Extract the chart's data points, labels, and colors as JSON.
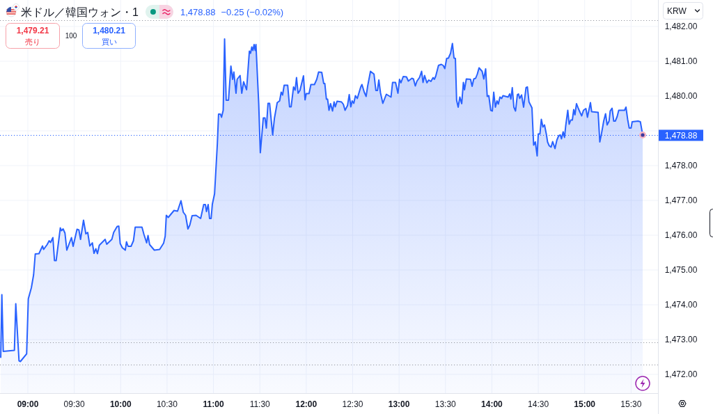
{
  "chart_data": {
    "type": "area",
    "title": "米ドル／韓国ウォン・1",
    "ylabel": "KRW",
    "annotations": [
      "1,478.88",
      "−0.25 (−0.02%)",
      "1,479.21",
      "売り",
      "100",
      "1,480.21",
      "買い"
    ],
    "color": "#2962ff",
    "x": [
      8.708,
      8.72,
      8.735,
      8.855,
      8.87,
      8.905,
      8.92,
      8.987,
      9.005,
      9.038,
      9.062,
      9.08,
      9.12,
      9.158,
      9.17,
      9.208,
      9.23,
      9.245,
      9.27,
      9.287,
      9.305,
      9.35,
      9.362,
      9.38,
      9.4,
      9.42,
      9.47,
      9.488,
      9.53,
      9.55,
      9.568,
      9.6,
      9.625,
      9.645,
      9.668,
      9.695,
      9.713,
      9.733,
      9.75,
      9.77,
      9.833,
      9.85,
      9.905,
      9.925,
      9.962,
      9.98,
      9.995,
      10.018,
      10.05,
      10.063,
      10.08,
      10.112,
      10.138,
      10.157,
      10.23,
      10.25,
      10.28,
      10.295,
      10.312,
      10.363,
      10.42,
      10.463,
      10.48,
      10.492,
      10.513,
      10.575,
      10.613,
      10.65,
      10.675,
      10.7,
      10.725,
      10.745,
      10.77,
      10.813,
      10.862,
      10.895,
      10.913,
      10.925,
      10.943,
      10.958,
      10.975,
      10.988,
      11.012,
      11.042,
      11.055,
      11.075,
      11.087,
      11.105,
      11.12,
      11.137,
      11.162,
      11.188,
      11.207,
      11.22,
      11.243,
      11.255,
      11.287,
      11.305,
      11.325,
      11.357,
      11.387,
      11.4,
      11.413,
      11.425,
      11.438,
      11.45,
      11.458,
      11.488,
      11.505,
      11.537,
      11.555,
      11.57,
      11.588,
      11.605,
      11.638,
      11.657,
      11.687,
      11.713,
      11.73,
      11.745,
      11.762,
      11.8,
      11.82,
      11.837,
      11.863,
      11.88,
      11.895,
      11.912,
      11.932,
      11.97,
      11.987,
      12.0,
      12.03,
      12.05,
      12.088,
      12.113,
      12.133,
      12.167,
      12.188,
      12.2,
      12.217,
      12.23,
      12.245,
      12.262,
      12.283,
      12.3,
      12.313,
      12.332,
      12.38,
      12.4,
      12.418,
      12.445,
      12.463,
      12.48,
      12.495,
      12.512,
      12.53,
      12.55,
      12.587,
      12.6,
      12.625,
      12.645,
      12.662,
      12.692,
      12.73,
      12.75,
      12.767,
      12.782,
      12.8,
      12.825,
      12.863,
      12.913,
      12.93,
      12.962,
      12.988,
      13.005,
      13.02,
      13.045,
      13.08,
      13.1,
      13.138,
      13.155,
      13.175,
      13.193,
      13.22,
      13.243,
      13.258,
      13.275,
      13.3,
      13.32,
      13.343,
      13.367,
      13.38,
      13.395,
      13.425,
      13.455,
      13.475,
      13.493,
      13.513,
      13.532,
      13.555,
      13.575,
      13.592,
      13.607,
      13.62,
      13.637,
      13.655,
      13.675,
      13.693,
      13.705,
      13.725,
      13.77,
      13.787,
      13.805,
      13.825,
      13.843,
      13.862,
      13.895,
      13.913,
      13.933,
      13.95,
      13.967,
      13.988,
      14.005,
      14.02,
      14.038,
      14.055,
      14.07,
      14.087,
      14.105,
      14.12,
      14.175,
      14.192,
      14.205,
      14.22,
      14.237,
      14.255,
      14.275,
      14.287,
      14.3,
      14.32,
      14.342,
      14.368,
      14.383,
      14.4,
      14.432,
      14.45,
      14.468,
      14.488,
      14.5,
      14.518,
      14.533,
      14.55,
      14.567,
      14.588,
      14.6,
      14.618,
      14.638,
      14.655,
      14.68,
      14.7,
      14.72,
      14.738,
      14.75,
      14.768,
      14.783,
      14.795,
      14.818,
      14.833,
      14.85,
      14.867,
      14.882,
      14.895,
      14.912,
      14.932,
      14.95,
      14.968,
      14.987,
      15.013,
      15.03,
      15.062,
      15.075,
      15.145,
      15.163,
      15.182,
      15.205,
      15.225,
      15.242,
      15.263,
      15.275,
      15.295,
      15.313,
      15.33,
      15.35,
      15.367,
      15.43,
      15.445,
      15.463,
      15.48,
      15.5,
      15.512,
      15.575,
      15.6,
      15.625
    ],
    "values": [
      1472.49,
      1474.29,
      1472.66,
      1472.69,
      1474.03,
      1472.39,
      1472.37,
      1472.59,
      1474.17,
      1474.49,
      1474.86,
      1475.46,
      1475.47,
      1475.69,
      1475.59,
      1475.73,
      1475.84,
      1475.79,
      1475.93,
      1475.27,
      1475.27,
      1476.21,
      1476.13,
      1476.18,
      1476.06,
      1475.57,
      1475.93,
      1475.68,
      1476.17,
      1476.15,
      1475.88,
      1476.43,
      1476.04,
      1476.08,
      1475.69,
      1475.78,
      1475.48,
      1475.61,
      1475.47,
      1475.71,
      1475.88,
      1475.74,
      1475.88,
      1476.08,
      1476.25,
      1476.26,
      1475.76,
      1475.64,
      1475.57,
      1475.81,
      1475.68,
      1475.68,
      1475.84,
      1476.23,
      1476.23,
      1476.03,
      1475.78,
      1475.99,
      1475.73,
      1475.57,
      1475.59,
      1475.77,
      1475.97,
      1476.57,
      1476.51,
      1476.71,
      1476.69,
      1476.99,
      1476.66,
      1476.57,
      1476.18,
      1476.29,
      1476.56,
      1476.57,
      1476.48,
      1476.88,
      1476.88,
      1476.68,
      1476.88,
      1476.48,
      1476.48,
      1476.89,
      1477.19,
      1478.63,
      1479.48,
      1479.48,
      1479.39,
      1479.59,
      1481.64,
      1479.88,
      1479.88,
      1480.86,
      1480.48,
      1480.69,
      1480.08,
      1480.48,
      1480.59,
      1480.08,
      1480.41,
      1480.18,
      1481.29,
      1481.23,
      1481.41,
      1481.31,
      1481.48,
      1481.31,
      1481.48,
      1479.76,
      1478.37,
      1479.37,
      1479.37,
      1479.08,
      1479.79,
      1479.79,
      1478.88,
      1479.36,
      1479.81,
      1479.86,
      1480.11,
      1480.03,
      1480.31,
      1480.31,
      1479.69,
      1479.69,
      1480.26,
      1480.17,
      1480.53,
      1480.08,
      1480.16,
      1480.58,
      1479.89,
      1480.07,
      1480.07,
      1480.33,
      1480.33,
      1480.48,
      1480.69,
      1480.68,
      1480.36,
      1480.36,
      1479.91,
      1479.91,
      1479.59,
      1479.78,
      1479.57,
      1479.83,
      1479.69,
      1479.85,
      1479.83,
      1479.76,
      1479.59,
      1479.73,
      1480.04,
      1479.69,
      1479.86,
      1479.79,
      1480.01,
      1479.93,
      1480.26,
      1480.33,
      1480.11,
      1479.99,
      1480.29,
      1480.71,
      1480.63,
      1480.16,
      1480.16,
      1480.46,
      1480.09,
      1479.79,
      1480.05,
      1479.97,
      1480.39,
      1480.39,
      1480.08,
      1480.48,
      1480.38,
      1480.56,
      1480.55,
      1480.43,
      1480.51,
      1480.49,
      1480.29,
      1480.43,
      1480.53,
      1480.71,
      1480.39,
      1480.59,
      1480.38,
      1480.46,
      1480.42,
      1480.53,
      1480.48,
      1480.57,
      1480.88,
      1480.91,
      1480.88,
      1480.79,
      1481.08,
      1481.09,
      1481.23,
      1481.51,
      1481.09,
      1481.08,
      1479.88,
      1479.68,
      1479.97,
      1479.78,
      1480.39,
      1480.18,
      1480.49,
      1480.48,
      1480.28,
      1480.49,
      1480.51,
      1480.63,
      1480.81,
      1480.71,
      1480.49,
      1480.78,
      1479.99,
      1480.01,
      1479.59,
      1479.57,
      1480.11,
      1479.68,
      1479.86,
      1479.77,
      1479.97,
      1479.93,
      1480.01,
      1479.97,
      1480.06,
      1479.91,
      1480.24,
      1479.68,
      1479.57,
      1480.04,
      1480.06,
      1479.93,
      1480.03,
      1479.68,
      1480.24,
      1480.26,
      1479.83,
      1479.66,
      1478.59,
      1478.68,
      1478.28,
      1478.91,
      1478.91,
      1479.33,
      1479.11,
      1479.17,
      1478.89,
      1478.68,
      1478.57,
      1478.53,
      1478.69,
      1478.49,
      1478.73,
      1478.86,
      1478.88,
      1478.77,
      1478.97,
      1478.81,
      1479.13,
      1479.59,
      1479.19,
      1479.31,
      1479.31,
      1479.61,
      1479.46,
      1479.78,
      1479.64,
      1479.53,
      1479.43,
      1479.59,
      1479.64,
      1479.39,
      1479.81,
      1479.55,
      1479.53,
      1478.68,
      1478.93,
      1479.28,
      1479.49,
      1479.17,
      1479.28,
      1479.57,
      1479.65,
      1479.28,
      1479.28,
      1479.41,
      1479.59,
      1479.59,
      1479.68,
      1479.33,
      1479.08,
      1479.08,
      1479.26,
      1479.28,
      1479.26,
      1478.88
    ],
    "xlim": [
      8.7,
      15.79
    ],
    "ylim": [
      1471.46,
      1482.76
    ],
    "xticks": [
      {
        "value": 9,
        "label": "09:00"
      },
      {
        "value": 9.5,
        "label": "09:30"
      },
      {
        "value": 10,
        "label": "10:00"
      },
      {
        "value": 10.5,
        "label": "10:30"
      },
      {
        "value": 11,
        "label": "11:00"
      },
      {
        "value": 11.5,
        "label": "11:30"
      },
      {
        "value": 12,
        "label": "12:00"
      },
      {
        "value": 12.5,
        "label": "12:30"
      },
      {
        "value": 13,
        "label": "13:00"
      },
      {
        "value": 13.5,
        "label": "13:30"
      },
      {
        "value": 14,
        "label": "14:00"
      },
      {
        "value": 14.5,
        "label": "14:30"
      },
      {
        "value": 15,
        "label": "15:00"
      },
      {
        "value": 15.5,
        "label": "15:30"
      }
    ],
    "yticks": [
      {
        "value": 1472,
        "label": "1,472.00"
      },
      {
        "value": 1473,
        "label": "1,473.00"
      },
      {
        "value": 1474,
        "label": "1,474.00"
      },
      {
        "value": 1475,
        "label": "1,475.00"
      },
      {
        "value": 1476,
        "label": "1,476.00"
      },
      {
        "value": 1477,
        "label": "1,477.00"
      },
      {
        "value": 1478,
        "label": "1,478.00"
      },
      {
        "value": 1479,
        "label": null
      },
      {
        "value": 1480,
        "label": "1,480.00"
      },
      {
        "value": 1481,
        "label": "1,481.00"
      },
      {
        "value": 1482,
        "label": "1,482.00"
      }
    ],
    "ref_lines": [
      {
        "axis": "y",
        "value": 1478.88,
        "label": "1,478.88",
        "color": "#2962ff",
        "line_style": "dotted"
      },
      {
        "axis": "y",
        "value": 1482.18,
        "color": "#9598a1",
        "line_style": "dotted"
      },
      {
        "axis": "y",
        "value": 1472.91,
        "color": "#9598a1",
        "line_style": "dotted"
      },
      {
        "axis": "y",
        "value": 1472.29,
        "color": "#9598a1",
        "line_style": "dotted"
      }
    ],
    "grid": true
  }
}
